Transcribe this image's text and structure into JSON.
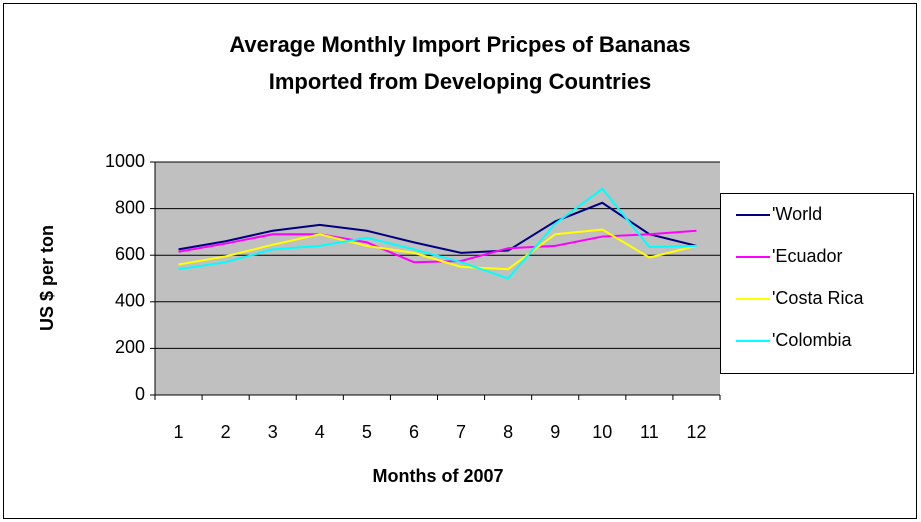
{
  "chart_data": {
    "type": "line",
    "title": [
      "Average Monthly Import Pricpes of Bananas",
      "Imported from Developing Countries"
    ],
    "x_label": "Months of 2007",
    "y_label": "US $ per ton",
    "categories": [
      "1",
      "2",
      "3",
      "4",
      "5",
      "6",
      "7",
      "8",
      "9",
      "10",
      "11",
      "12"
    ],
    "series": [
      {
        "name": "'World",
        "color": "#000080",
        "values": [
          625,
          660,
          705,
          730,
          705,
          655,
          610,
          620,
          745,
          825,
          690,
          640
        ]
      },
      {
        "name": "'Ecuador",
        "color": "#ff00ff",
        "values": [
          615,
          650,
          690,
          690,
          655,
          570,
          575,
          630,
          640,
          680,
          690,
          705
        ]
      },
      {
        "name": "'Costa Rica",
        "color": "#ffff00",
        "values": [
          560,
          595,
          645,
          690,
          640,
          610,
          550,
          540,
          690,
          710,
          590,
          640
        ]
      },
      {
        "name": "'Colombia",
        "color": "#00ffff",
        "values": [
          540,
          570,
          625,
          640,
          675,
          625,
          570,
          500,
          735,
          885,
          635,
          640
        ]
      }
    ],
    "ylim": [
      0,
      1000
    ],
    "yticks": [
      0,
      200,
      400,
      600,
      800,
      1000
    ],
    "grid": true,
    "legend": "right"
  }
}
